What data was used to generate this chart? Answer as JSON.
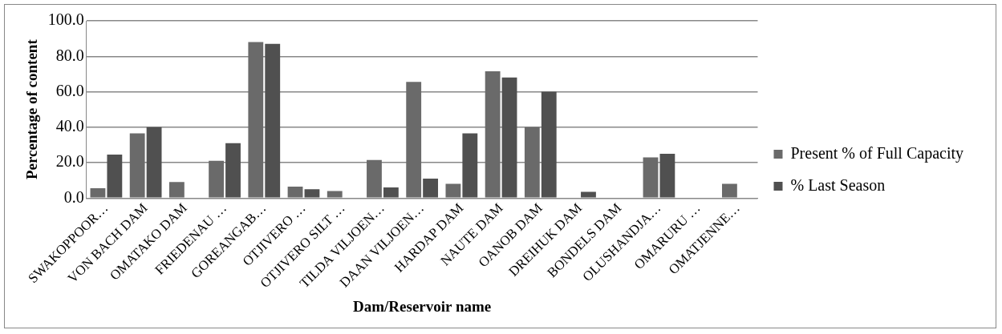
{
  "chart_data": {
    "type": "bar",
    "xlabel": "Dam/Reservoir name",
    "ylabel": "Percentage of content",
    "categories": [
      "SWAKOPPOOR…",
      "VON BACH DAM",
      "OMATAKO DAM",
      "FRIEDENAU …",
      "GOREANGAB…",
      "OTJIVERO …",
      "OTJIVERO SILT …",
      "TILDA VILJOEN…",
      "DAAN VILJOEN…",
      "HARDAP DAM",
      "NAUTE DAM",
      "OANOB DAM",
      "DREIHUK DAM",
      "BONDELS DAM",
      "OLUSHANDJA…",
      "OMARURU …",
      "OMATJENNE…"
    ],
    "series": [
      {
        "name": "Present % of Full Capacity",
        "color": "#6a6a6a",
        "values": [
          5.5,
          36.5,
          9,
          21,
          88,
          6.5,
          4,
          21.5,
          65.5,
          8,
          71.5,
          40,
          0,
          0,
          23,
          0,
          8
        ]
      },
      {
        "name": "% Last Season",
        "color": "#505050",
        "values": [
          24.5,
          40,
          0,
          31,
          87,
          5,
          0,
          6,
          11,
          36.5,
          68,
          60,
          3.5,
          0,
          25,
          0,
          0
        ]
      }
    ],
    "ylim": [
      0,
      100
    ],
    "yticks": [
      {
        "value": 0,
        "label": "0.0"
      },
      {
        "value": 20,
        "label": "20.0"
      },
      {
        "value": 40,
        "label": "40.0"
      },
      {
        "value": 60,
        "label": "60.0"
      },
      {
        "value": 80,
        "label": "80.0"
      },
      {
        "value": 100,
        "label": "100.0"
      }
    ],
    "grid": "y",
    "legend": "right"
  }
}
